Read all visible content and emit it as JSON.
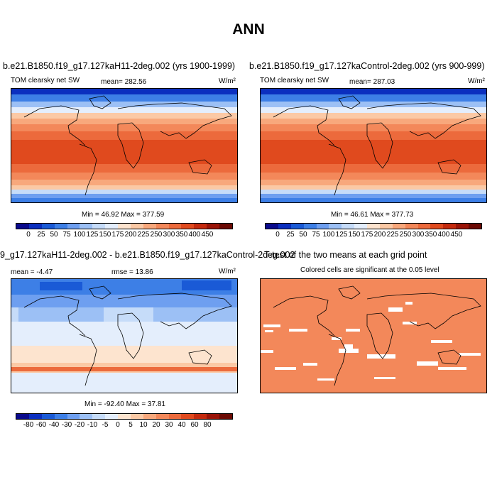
{
  "title": "ANN",
  "panels": {
    "p1": {
      "title": "b.e21.B1850.f19_g17.127kaH11-2deg.002 (yrs 1900-1999)",
      "variable": "TOM clearsky net SW",
      "mean": "mean= 282.56",
      "units": "W/m²",
      "minmax": "Min =  46.92 Max = 377.59"
    },
    "p2": {
      "title": "b.e21.B1850.f19_g17.127kaControl-2deg.002 (yrs 900-999)",
      "variable": "TOM clearsky net SW",
      "mean": "mean= 287.03",
      "units": "W/m²",
      "minmax": "Min =  46.61 Max = 377.73"
    },
    "p3": {
      "title": "9_g17.127kaH11-2deg.002 - b.e21.B1850.f19_g17.127kaControl-2deg.002",
      "mean": "mean = -4.47",
      "rmse": "rmse =  13.86",
      "units": "W/m²",
      "minmax": "Min = -92.40 Max =  37.81"
    },
    "p4": {
      "title": "T-test of the two means at each grid point",
      "subtitle": "Colored cells are significant at the 0.05 level"
    }
  },
  "colorbars": {
    "abs": {
      "colors": [
        "#0a0a8c",
        "#0b2fbf",
        "#1a5ad6",
        "#3d7fe6",
        "#6e9ff0",
        "#9cc0f5",
        "#c6dcf9",
        "#e4eefc",
        "#fde4cf",
        "#fbc9a5",
        "#f8a87c",
        "#f3885a",
        "#ec6a3c",
        "#e04a1e",
        "#c42a0e",
        "#9a1408",
        "#6b0a04"
      ],
      "ticks": [
        "0",
        "25",
        "50",
        "75",
        "100",
        "125",
        "150",
        "175",
        "200",
        "225",
        "250",
        "300",
        "350",
        "400",
        "450"
      ]
    },
    "diff": {
      "colors": [
        "#0a0a8c",
        "#0b2fbf",
        "#1a5ad6",
        "#3d7fe6",
        "#6e9ff0",
        "#9cc0f5",
        "#c6dcf9",
        "#e4eefc",
        "#fde4cf",
        "#fbc9a5",
        "#f8a87c",
        "#f3885a",
        "#ec6a3c",
        "#e04a1e",
        "#c42a0e",
        "#9a1408",
        "#6b0a04"
      ],
      "ticks": [
        "-80",
        "-60",
        "-40",
        "-30",
        "-20",
        "-10",
        "-5",
        "0",
        "5",
        "10",
        "20",
        "30",
        "40",
        "60",
        "80"
      ]
    }
  }
}
